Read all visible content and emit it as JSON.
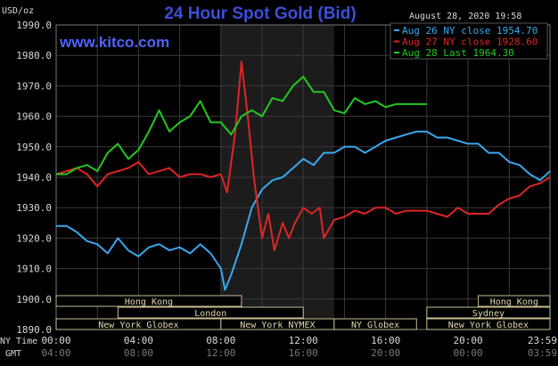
{
  "chart_data": {
    "type": "line",
    "title": "24 Hour Spot Gold (Bid)",
    "website": "www.kitco.com",
    "timestamp": "August 28, 2020 19:58",
    "ylabel": "USD/oz",
    "ylim": [
      1890,
      1990
    ],
    "yticks": [
      "1890.0",
      "1900.0",
      "1910.0",
      "1920.0",
      "1930.0",
      "1940.0",
      "1950.0",
      "1960.0",
      "1970.0",
      "1980.0",
      "1990.0"
    ],
    "x_label_ny": "NY Time",
    "x_label_gmt": "GMT",
    "xticks_ny": [
      "00:00",
      "04:00",
      "08:00",
      "12:00",
      "16:00",
      "20:00",
      "23:59"
    ],
    "xticks_gmt": [
      "04:00",
      "08:00",
      "12:00",
      "16:00",
      "20:00",
      "00:00",
      "03:59"
    ],
    "grid": true,
    "legend_position": "top-right",
    "series": [
      {
        "name": "Aug 26 NY close 1954.70",
        "color": "#38a8f0",
        "x": [
          0,
          0.5,
          1,
          1.5,
          2,
          2.5,
          3,
          3.5,
          4,
          4.5,
          5,
          5.5,
          6,
          6.5,
          7,
          7.5,
          8,
          8.2,
          8.5,
          9,
          9.5,
          10,
          10.5,
          11,
          11.5,
          12,
          12.5,
          13,
          13.5,
          14,
          14.5,
          15,
          15.5,
          16,
          16.5,
          17,
          17.5,
          18,
          18.5,
          19,
          19.5,
          20,
          20.5,
          21,
          21.5,
          22,
          22.5,
          23,
          23.5,
          23.98
        ],
        "values": [
          1924,
          1924,
          1922,
          1919,
          1918,
          1915,
          1920,
          1916,
          1914,
          1917,
          1918,
          1916,
          1917,
          1915,
          1918,
          1915,
          1910,
          1903,
          1908,
          1918,
          1930,
          1936,
          1939,
          1940,
          1943,
          1946,
          1944,
          1948,
          1948,
          1950,
          1950,
          1948,
          1950,
          1952,
          1953,
          1954,
          1955,
          1955,
          1953,
          1953,
          1952,
          1951,
          1951,
          1948,
          1948,
          1945,
          1944,
          1941,
          1939,
          1942
        ]
      },
      {
        "name": "Aug 27 NY close 1928.60",
        "color": "#e02525",
        "x": [
          0,
          0.5,
          1,
          1.5,
          2,
          2.5,
          3,
          3.5,
          4,
          4.5,
          5,
          5.5,
          6,
          6.5,
          7,
          7.5,
          8,
          8.3,
          8.7,
          9,
          9.3,
          9.6,
          10,
          10.3,
          10.6,
          11,
          11.3,
          11.6,
          12,
          12.4,
          12.8,
          13,
          13.5,
          14,
          14.5,
          15,
          15.5,
          16,
          16.5,
          17,
          17.5,
          18,
          18.5,
          19,
          19.5,
          20,
          20.5,
          21,
          21.5,
          22,
          22.5,
          23,
          23.5,
          23.98
        ],
        "values": [
          1941,
          1942,
          1943,
          1941,
          1937,
          1941,
          1942,
          1943,
          1945,
          1941,
          1942,
          1943,
          1940,
          1941,
          1941,
          1940,
          1941,
          1935,
          1955,
          1978,
          1960,
          1940,
          1920,
          1928,
          1916,
          1925,
          1920,
          1925,
          1930,
          1928,
          1930,
          1920,
          1926,
          1927,
          1929,
          1928,
          1930,
          1930,
          1928,
          1929,
          1929,
          1929,
          1928,
          1927,
          1930,
          1928,
          1928,
          1928,
          1931,
          1933,
          1934,
          1937,
          1938,
          1940
        ]
      },
      {
        "name": "Aug 28 Last 1964.30",
        "color": "#22c822",
        "x": [
          0,
          0.5,
          1,
          1.5,
          2,
          2.5,
          3,
          3.5,
          4,
          4.5,
          5,
          5.5,
          6,
          6.5,
          7,
          7.5,
          8,
          8.5,
          9,
          9.5,
          10,
          10.5,
          11,
          11.5,
          12,
          12.5,
          13,
          13.5,
          14,
          14.5,
          15,
          15.5,
          16,
          16.5,
          17,
          17.5,
          18
        ],
        "values": [
          1941,
          1941,
          1943,
          1944,
          1942,
          1948,
          1951,
          1946,
          1949,
          1955,
          1962,
          1955,
          1958,
          1960,
          1965,
          1958,
          1958,
          1954,
          1960,
          1962,
          1960,
          1966,
          1965,
          1970,
          1973,
          1968,
          1968,
          1962,
          1961,
          1966,
          1964,
          1965,
          1963,
          1964,
          1964,
          1964,
          1964
        ]
      }
    ],
    "sessions": [
      {
        "label": "Hong Kong",
        "x0": 0,
        "x1": 9.0,
        "row": 0
      },
      {
        "label": "Hong Kong",
        "x0": 20.5,
        "x1": 23.98,
        "row": 0
      },
      {
        "label": "London",
        "x0": 3.0,
        "x1": 12.0,
        "row": 1
      },
      {
        "label": "Sydney",
        "x0": 18.0,
        "x1": 23.98,
        "row": 1
      },
      {
        "label": "New York Globex",
        "x0": 0,
        "x1": 8.0,
        "row": 2
      },
      {
        "label": "New York NYMEX",
        "x0": 8.0,
        "x1": 13.5,
        "row": 2
      },
      {
        "label": "NY Globex",
        "x0": 13.5,
        "x1": 17.5,
        "row": 2
      },
      {
        "label": "New York Globex",
        "x0": 18.0,
        "x1": 23.98,
        "row": 2
      }
    ],
    "shaded_region": {
      "x0": 8.0,
      "x1": 13.5
    }
  }
}
